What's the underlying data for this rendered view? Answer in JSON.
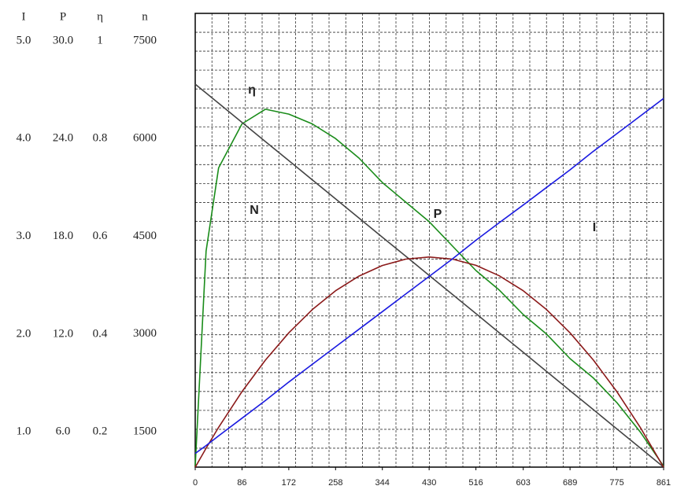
{
  "chart_data": {
    "type": "line",
    "x": [
      0,
      20,
      43,
      86,
      129,
      172,
      215,
      258,
      301,
      344,
      387,
      430,
      473,
      516,
      559,
      603,
      646,
      689,
      732,
      775,
      818,
      861
    ],
    "xlim": [
      0,
      861
    ],
    "xticks": [
      0,
      86,
      172,
      258,
      344,
      430,
      516,
      603,
      689,
      775,
      861
    ],
    "axes": [
      {
        "name": "I",
        "lim": [
          0.64,
          5.28
        ],
        "ticks": [
          {
            "value": 5,
            "label": "5.0"
          },
          {
            "value": 4,
            "label": "4.0"
          },
          {
            "value": 3,
            "label": "3.0"
          },
          {
            "value": 2,
            "label": "2.0"
          },
          {
            "value": 1,
            "label": "1.0"
          }
        ]
      },
      {
        "name": "P",
        "lim": [
          3.84,
          31.68
        ],
        "ticks": [
          {
            "value": 30,
            "label": "30.0"
          },
          {
            "value": 24,
            "label": "24.0"
          },
          {
            "value": 18,
            "label": "18.0"
          },
          {
            "value": 12,
            "label": "12.0"
          },
          {
            "value": 6,
            "label": "6.0"
          }
        ]
      },
      {
        "name": "η",
        "lim": [
          0.128,
          1.056
        ],
        "ticks": [
          1,
          0.8,
          0.6,
          0.4,
          0.2
        ]
      },
      {
        "name": "n",
        "lim": [
          957,
          7922
        ],
        "ticks": [
          7500,
          6000,
          4500,
          3000,
          1500
        ]
      }
    ],
    "grid": true,
    "series": [
      {
        "name": "η",
        "axis": "η",
        "color": "#1a8c1a",
        "values": [
          0.13,
          0.57,
          0.74,
          0.83,
          0.86,
          0.85,
          0.83,
          0.8,
          0.76,
          0.71,
          0.67,
          0.63,
          0.58,
          0.53,
          0.49,
          0.44,
          0.4,
          0.35,
          0.31,
          0.26,
          0.2,
          0.13
        ]
      },
      {
        "name": "N",
        "axis": "n",
        "color": "#444444",
        "values": [
          6836,
          6699,
          6542,
          6249,
          5955,
          5662,
          5368,
          5074,
          4781,
          4487,
          4194,
          3900,
          3606,
          3313,
          3019,
          2719,
          2425,
          2132,
          1838,
          1544,
          1251,
          957
        ]
      },
      {
        "name": "P",
        "axis": "P",
        "color": "#8b1a1a",
        "values": [
          3.83,
          5.0,
          6.28,
          8.47,
          10.4,
          12.08,
          13.5,
          14.66,
          15.56,
          16.21,
          16.6,
          16.73,
          16.6,
          16.22,
          15.58,
          14.66,
          13.5,
          12.08,
          10.4,
          8.47,
          6.28,
          3.83
        ]
      },
      {
        "name": "I",
        "axis": "I",
        "color": "#1a1ae0",
        "values": [
          0.78,
          0.86,
          0.96,
          1.14,
          1.32,
          1.51,
          1.69,
          1.87,
          2.05,
          2.23,
          2.41,
          2.59,
          2.77,
          2.96,
          3.14,
          3.32,
          3.5,
          3.68,
          3.87,
          4.05,
          4.23,
          4.41
        ]
      }
    ]
  }
}
